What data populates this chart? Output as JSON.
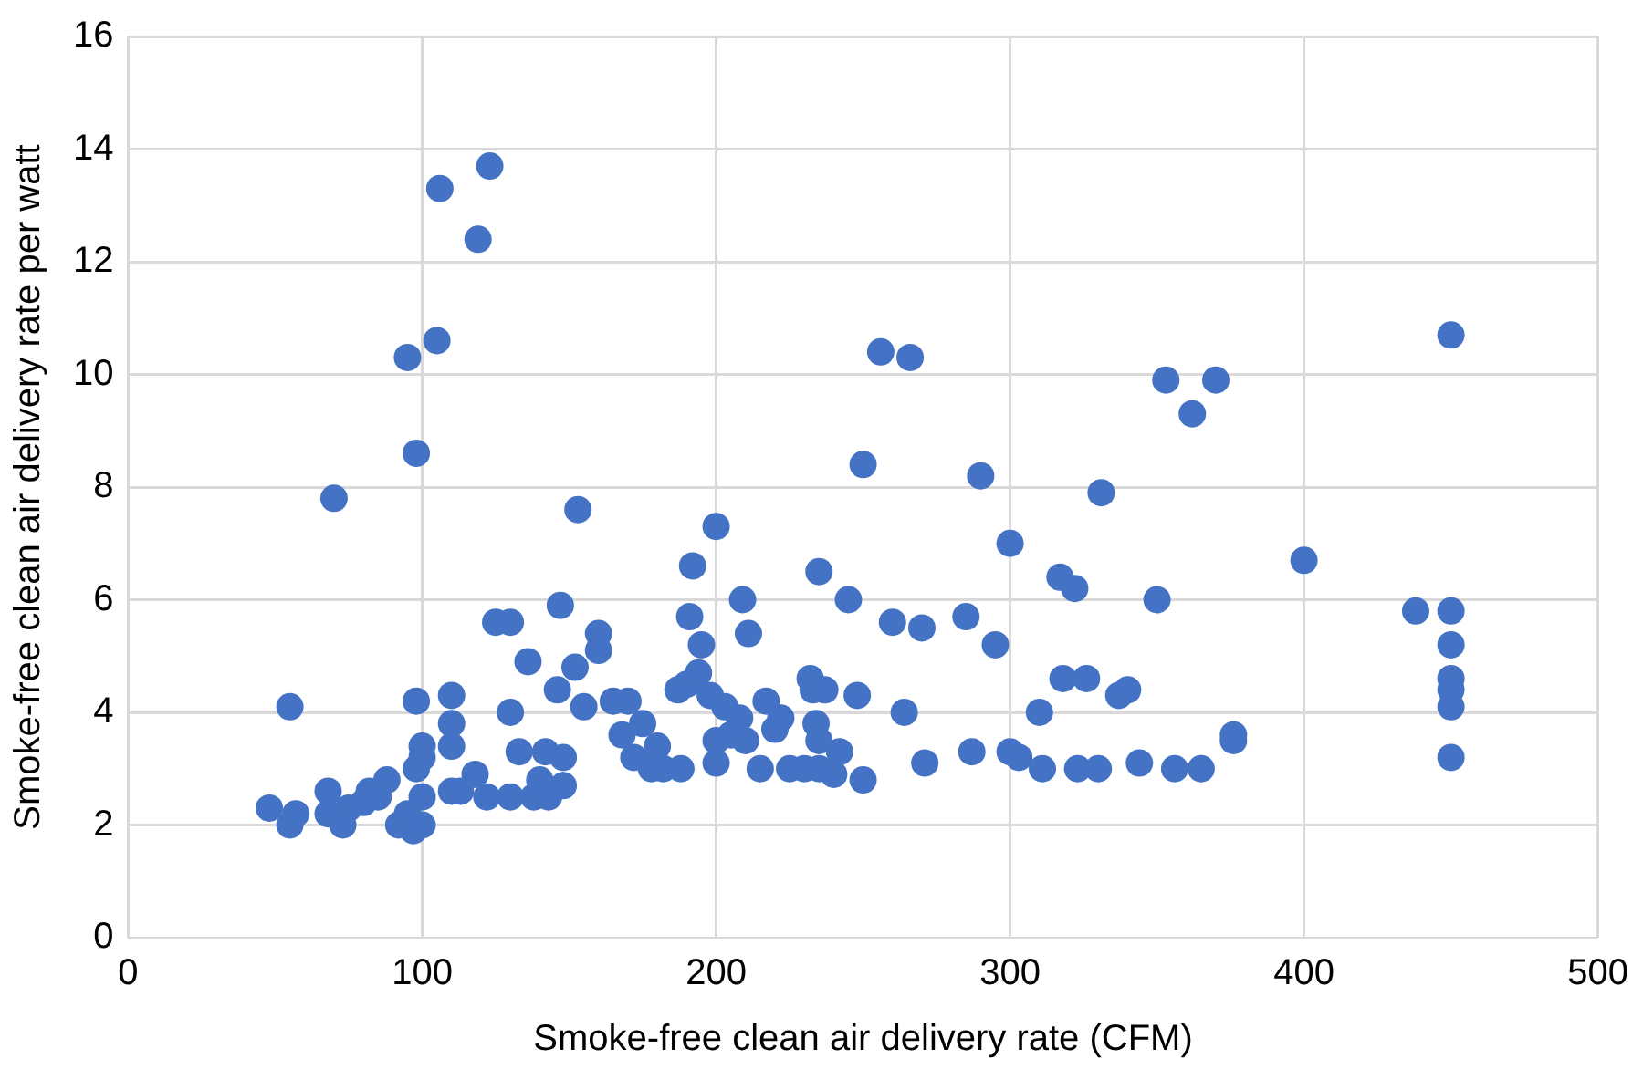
{
  "chart_data": {
    "type": "scatter",
    "xlabel": "Smoke-free clean air delivery rate (CFM)",
    "ylabel": "Smoke-free clean air delivery rate per watt",
    "xlim": [
      0,
      500
    ],
    "xticks": [
      0,
      100,
      200,
      300,
      400,
      500
    ],
    "ylim": [
      0,
      16
    ],
    "yticks": [
      0,
      2,
      4,
      6,
      8,
      10,
      12,
      14,
      16
    ],
    "grid": true,
    "marker": "circle",
    "series": [
      {
        "color": "#4472c4",
        "x": [
          48,
          55,
          57,
          55,
          68,
          68,
          73,
          70,
          75,
          80,
          82,
          88,
          85,
          92,
          95,
          98,
          95,
          97,
          98,
          100,
          100,
          98,
          100,
          100,
          105,
          106,
          110,
          110,
          110,
          110,
          113,
          118,
          119,
          123,
          125,
          122,
          130,
          130,
          130,
          133,
          136,
          138,
          140,
          142,
          143,
          146,
          147,
          148,
          148,
          152,
          153,
          155,
          160,
          160,
          165,
          168,
          170,
          172,
          175,
          178,
          180,
          182,
          187,
          188,
          190,
          191,
          192,
          194,
          195,
          198,
          200,
          200,
          200,
          203,
          205,
          208,
          209,
          210,
          211,
          215,
          217,
          220,
          222,
          225,
          230,
          232,
          233,
          234,
          235,
          235,
          235,
          237,
          240,
          242,
          245,
          248,
          250,
          250,
          256,
          260,
          264,
          266,
          270,
          271,
          285,
          287,
          290,
          295,
          300,
          300,
          303,
          310,
          311,
          317,
          318,
          322,
          323,
          326,
          330,
          331,
          337,
          340,
          344,
          350,
          353,
          356,
          362,
          365,
          370,
          376,
          376,
          400,
          438,
          450,
          450,
          450,
          450,
          450,
          450,
          450
        ],
        "values": [
          2.3,
          2.0,
          2.2,
          4.1,
          2.6,
          2.2,
          2.0,
          7.8,
          2.3,
          2.4,
          2.6,
          2.8,
          2.5,
          2.0,
          10.3,
          8.6,
          2.2,
          1.9,
          3.0,
          2.0,
          2.5,
          4.2,
          3.2,
          3.4,
          10.6,
          13.3,
          4.3,
          3.8,
          3.4,
          2.6,
          2.6,
          2.9,
          12.4,
          13.7,
          5.6,
          2.5,
          5.6,
          4.0,
          2.5,
          3.3,
          4.9,
          2.5,
          2.8,
          3.3,
          2.5,
          4.4,
          5.9,
          3.2,
          2.7,
          4.8,
          7.6,
          4.1,
          5.4,
          5.1,
          4.2,
          3.6,
          4.2,
          3.2,
          3.8,
          3.0,
          3.4,
          3.0,
          4.4,
          3.0,
          4.5,
          5.7,
          6.6,
          4.7,
          5.2,
          4.3,
          7.3,
          3.1,
          3.5,
          4.1,
          3.6,
          3.9,
          6.0,
          3.5,
          5.4,
          3.0,
          4.2,
          3.7,
          3.9,
          3.0,
          3.0,
          4.6,
          4.4,
          3.8,
          6.5,
          3.5,
          3.0,
          4.4,
          2.9,
          3.3,
          6.0,
          4.3,
          8.4,
          2.8,
          10.4,
          5.6,
          4.0,
          10.3,
          5.5,
          3.1,
          5.7,
          3.3,
          8.2,
          5.2,
          7.0,
          3.3,
          3.2,
          4.0,
          3.0,
          6.4,
          4.6,
          6.2,
          3.0,
          4.6,
          3.0,
          7.9,
          4.3,
          4.4,
          3.1,
          6.0,
          9.9,
          3.0,
          9.3,
          3.0,
          9.9,
          3.6,
          3.5,
          6.7,
          5.8,
          10.7,
          5.8,
          5.2,
          4.6,
          4.4,
          4.1,
          3.2
        ]
      }
    ]
  }
}
